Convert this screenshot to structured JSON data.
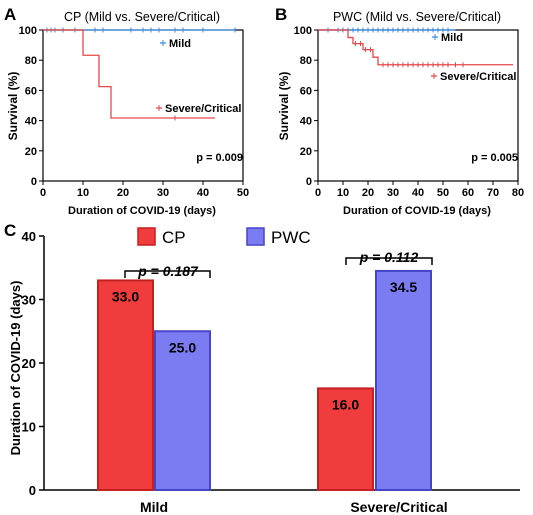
{
  "panels": {
    "a": {
      "letter": "A",
      "title": "CP (Mild vs. Severe/Critical)",
      "ylabel": "Survival (%)",
      "xlabel": "Duration of COVID-19 (days)",
      "p_value": "p = 0.009"
    },
    "b": {
      "letter": "B",
      "title": "PWC (Mild vs. Severe/Critical)",
      "ylabel": "Survival (%)",
      "xlabel": "Duration of COVID-19 (days)",
      "p_value": "p = 0.005"
    },
    "c": {
      "letter": "C",
      "ylabel": "Duration of COVID-19 (days)",
      "p_mild": "p = 0.187",
      "p_severe": "p = 0.112"
    }
  },
  "colors": {
    "mild": "#3a8ee6",
    "severe": "#e8474a",
    "cp_bar": "#f03c3c",
    "pwc_bar": "#7b7bf2"
  },
  "chart_data": [
    {
      "type": "line",
      "title": "CP (Mild vs. Severe/Critical)",
      "xlabel": "Duration of COVID-19 (days)",
      "ylabel": "Survival (%)",
      "xlim": [
        0,
        50
      ],
      "ylim": [
        0,
        100
      ],
      "xticks": [
        0,
        10,
        20,
        30,
        40,
        50
      ],
      "yticks": [
        0,
        20,
        40,
        60,
        80,
        100
      ],
      "series": [
        {
          "name": "Mild",
          "step": true,
          "x": [
            0,
            48
          ],
          "y": [
            100,
            100
          ],
          "censor": [
            1,
            2,
            3,
            5,
            8,
            13,
            15,
            22,
            25,
            27,
            29,
            33,
            35,
            40,
            48
          ]
        },
        {
          "name": "Severe/Critical",
          "step": true,
          "x": [
            0,
            10,
            14,
            17,
            43
          ],
          "y": [
            100,
            83.3,
            62.5,
            41.7,
            41.7
          ],
          "censor": [
            33
          ]
        }
      ]
    },
    {
      "type": "line",
      "title": "PWC (Mild vs. Severe/Critical)",
      "xlabel": "Duration of COVID-19 (days)",
      "ylabel": "Survival (%)",
      "xlim": [
        0,
        80
      ],
      "ylim": [
        0,
        100
      ],
      "xticks": [
        0,
        10,
        20,
        30,
        40,
        50,
        60,
        70,
        80
      ],
      "yticks": [
        0,
        20,
        40,
        60,
        80,
        100
      ],
      "series": [
        {
          "name": "Mild",
          "step": true,
          "x": [
            0,
            55
          ],
          "y": [
            100,
            100
          ],
          "censor": [
            4,
            8,
            10,
            12,
            14,
            16,
            18,
            20,
            22,
            24,
            26,
            28,
            30,
            32,
            34,
            36,
            38,
            40,
            42,
            44,
            46,
            48,
            50,
            52
          ]
        },
        {
          "name": "Severe/Critical",
          "step": true,
          "x": [
            0,
            12,
            14,
            18,
            22,
            24,
            78
          ],
          "y": [
            100,
            95,
            91,
            87,
            82,
            77,
            77
          ],
          "censor": [
            15,
            17,
            19,
            21,
            26,
            28,
            30,
            32,
            34,
            36,
            38,
            40,
            42,
            44,
            46,
            48,
            50,
            52,
            55,
            58
          ]
        }
      ]
    },
    {
      "type": "bar",
      "categories": [
        "Mild",
        "Severe/Critical"
      ],
      "ylabel": "Duration of COVID-19 (days)",
      "ylim": [
        0,
        40
      ],
      "yticks": [
        0,
        10,
        20,
        30,
        40
      ],
      "series": [
        {
          "name": "CP",
          "values": [
            33.0,
            16.0
          ],
          "labels": [
            "33.0",
            "16.0"
          ]
        },
        {
          "name": "PWC",
          "values": [
            25.0,
            34.5
          ],
          "labels": [
            "25.0",
            "34.5"
          ]
        }
      ]
    }
  ]
}
